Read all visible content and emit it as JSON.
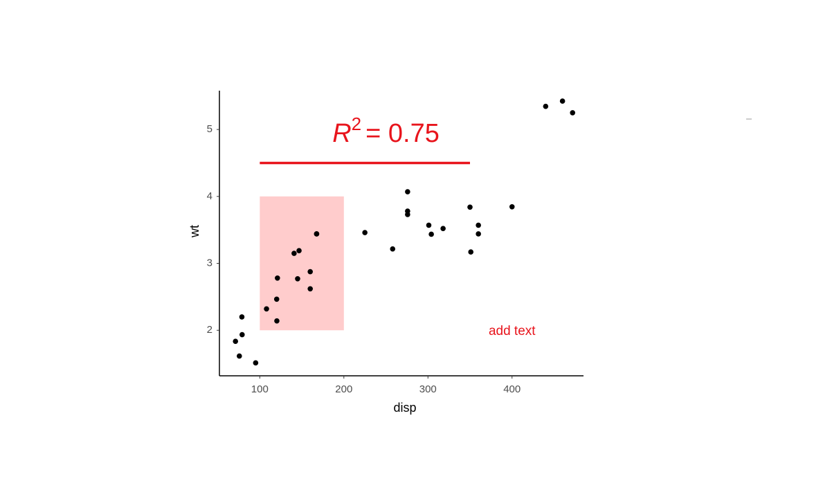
{
  "chart_data": {
    "type": "scatter",
    "x_label": "disp",
    "y_label": "wt",
    "x": [
      160,
      160,
      108,
      258,
      360,
      225,
      360,
      146.7,
      140.8,
      167.6,
      167.6,
      275.8,
      275.8,
      275.8,
      472,
      460,
      440,
      78.7,
      75.7,
      71.1,
      120.1,
      318,
      304,
      350,
      400,
      79,
      120.3,
      95.1,
      351,
      145,
      301,
      121
    ],
    "values": [
      2.62,
      2.875,
      2.32,
      3.215,
      3.44,
      3.46,
      3.57,
      3.19,
      3.15,
      3.44,
      3.44,
      4.07,
      3.73,
      3.78,
      5.25,
      5.424,
      5.345,
      2.2,
      1.615,
      1.835,
      2.465,
      3.52,
      3.435,
      3.84,
      3.845,
      1.935,
      2.14,
      1.513,
      3.17,
      2.77,
      3.57,
      2.78
    ],
    "color": "#000000",
    "xlim": [
      52,
      485
    ],
    "ylim": [
      1.32,
      5.58
    ],
    "xticks": [
      100,
      200,
      300,
      400
    ],
    "yticks": [
      2,
      3,
      4,
      5
    ],
    "grid": false,
    "annotations": [
      {
        "type": "rect",
        "xmin": 100,
        "xmax": 200,
        "ymin": 2,
        "ymax": 4,
        "color": "#ffcccc"
      },
      {
        "type": "segment",
        "x": 100,
        "xend": 350,
        "y": 4.5,
        "yend": 4.5,
        "color": "#e8141c"
      },
      {
        "type": "formula",
        "x": 250,
        "y": 4.92,
        "symbol": "R",
        "exponent": "2",
        "rest": "= 0.75",
        "color": "#e8141c"
      },
      {
        "type": "text",
        "x": 400,
        "y": 1.98,
        "text": "add text",
        "color": "#e8141c"
      }
    ]
  }
}
